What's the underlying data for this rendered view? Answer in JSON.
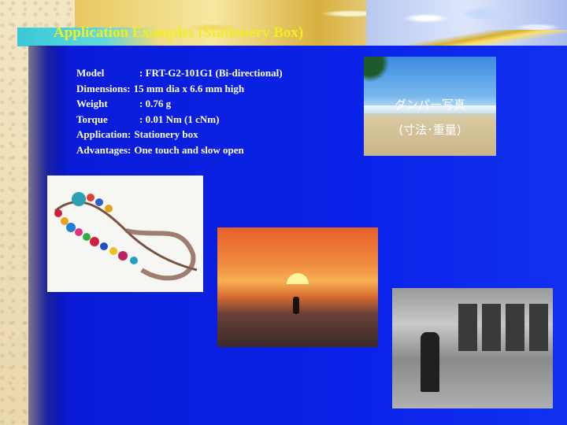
{
  "slide": {
    "title": "Application Examples (Stationery Box)",
    "specs": [
      {
        "label": "Model",
        "value": ": FRT-G2-101G1 (Bi-directional)",
        "wide": false
      },
      {
        "label": "Dimensions:",
        "value": "15 mm dia x 6.6 mm high",
        "wide": true
      },
      {
        "label": "Weight",
        "value": ": 0.76 g",
        "wide": false
      },
      {
        "label": "Torque",
        "value": ": 0.01 Nm (1 cNm)",
        "wide": false
      },
      {
        "label": "Application:",
        "value": "Stationery box",
        "wide": true
      },
      {
        "label": "Advantages:",
        "value": "One touch and slow open",
        "wide": true
      }
    ],
    "photo_note": {
      "line1": "ダンパー写真",
      "line2": "(寸法･重量)"
    }
  },
  "colors": {
    "title": "#f0ee20",
    "panel_blue": "#0a22e8",
    "text": "#ffffff"
  }
}
